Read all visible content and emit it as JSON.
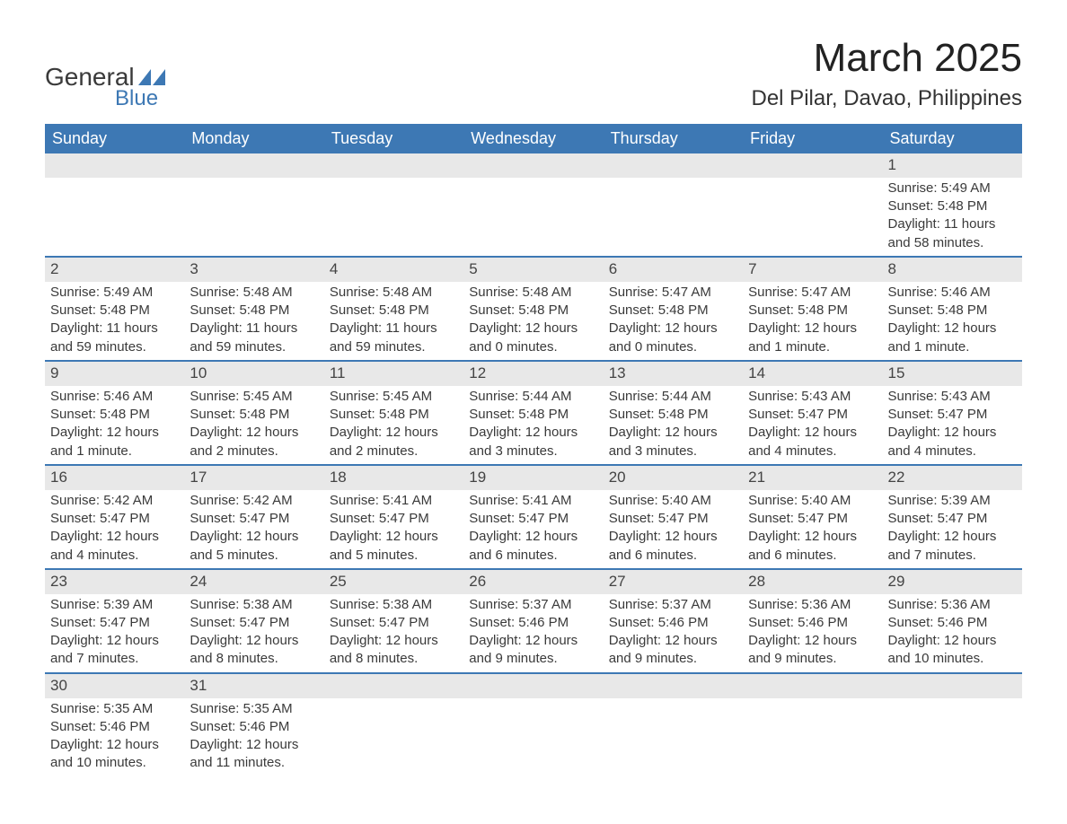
{
  "logo": {
    "text_general": "General",
    "text_blue": "Blue",
    "flag_color": "#3d78b4"
  },
  "title": "March 2025",
  "location": "Del Pilar, Davao, Philippines",
  "colors": {
    "header_bg": "#3d78b4",
    "header_text": "#ffffff",
    "daynum_bg": "#e8e8e8",
    "row_border": "#3d78b4",
    "body_text": "#3a3a3a",
    "background": "#ffffff"
  },
  "weekdays": [
    "Sunday",
    "Monday",
    "Tuesday",
    "Wednesday",
    "Thursday",
    "Friday",
    "Saturday"
  ],
  "weeks": [
    [
      null,
      null,
      null,
      null,
      null,
      null,
      {
        "n": "1",
        "sunrise": "Sunrise: 5:49 AM",
        "sunset": "Sunset: 5:48 PM",
        "daylight": "Daylight: 11 hours and 58 minutes."
      }
    ],
    [
      {
        "n": "2",
        "sunrise": "Sunrise: 5:49 AM",
        "sunset": "Sunset: 5:48 PM",
        "daylight": "Daylight: 11 hours and 59 minutes."
      },
      {
        "n": "3",
        "sunrise": "Sunrise: 5:48 AM",
        "sunset": "Sunset: 5:48 PM",
        "daylight": "Daylight: 11 hours and 59 minutes."
      },
      {
        "n": "4",
        "sunrise": "Sunrise: 5:48 AM",
        "sunset": "Sunset: 5:48 PM",
        "daylight": "Daylight: 11 hours and 59 minutes."
      },
      {
        "n": "5",
        "sunrise": "Sunrise: 5:48 AM",
        "sunset": "Sunset: 5:48 PM",
        "daylight": "Daylight: 12 hours and 0 minutes."
      },
      {
        "n": "6",
        "sunrise": "Sunrise: 5:47 AM",
        "sunset": "Sunset: 5:48 PM",
        "daylight": "Daylight: 12 hours and 0 minutes."
      },
      {
        "n": "7",
        "sunrise": "Sunrise: 5:47 AM",
        "sunset": "Sunset: 5:48 PM",
        "daylight": "Daylight: 12 hours and 1 minute."
      },
      {
        "n": "8",
        "sunrise": "Sunrise: 5:46 AM",
        "sunset": "Sunset: 5:48 PM",
        "daylight": "Daylight: 12 hours and 1 minute."
      }
    ],
    [
      {
        "n": "9",
        "sunrise": "Sunrise: 5:46 AM",
        "sunset": "Sunset: 5:48 PM",
        "daylight": "Daylight: 12 hours and 1 minute."
      },
      {
        "n": "10",
        "sunrise": "Sunrise: 5:45 AM",
        "sunset": "Sunset: 5:48 PM",
        "daylight": "Daylight: 12 hours and 2 minutes."
      },
      {
        "n": "11",
        "sunrise": "Sunrise: 5:45 AM",
        "sunset": "Sunset: 5:48 PM",
        "daylight": "Daylight: 12 hours and 2 minutes."
      },
      {
        "n": "12",
        "sunrise": "Sunrise: 5:44 AM",
        "sunset": "Sunset: 5:48 PM",
        "daylight": "Daylight: 12 hours and 3 minutes."
      },
      {
        "n": "13",
        "sunrise": "Sunrise: 5:44 AM",
        "sunset": "Sunset: 5:48 PM",
        "daylight": "Daylight: 12 hours and 3 minutes."
      },
      {
        "n": "14",
        "sunrise": "Sunrise: 5:43 AM",
        "sunset": "Sunset: 5:47 PM",
        "daylight": "Daylight: 12 hours and 4 minutes."
      },
      {
        "n": "15",
        "sunrise": "Sunrise: 5:43 AM",
        "sunset": "Sunset: 5:47 PM",
        "daylight": "Daylight: 12 hours and 4 minutes."
      }
    ],
    [
      {
        "n": "16",
        "sunrise": "Sunrise: 5:42 AM",
        "sunset": "Sunset: 5:47 PM",
        "daylight": "Daylight: 12 hours and 4 minutes."
      },
      {
        "n": "17",
        "sunrise": "Sunrise: 5:42 AM",
        "sunset": "Sunset: 5:47 PM",
        "daylight": "Daylight: 12 hours and 5 minutes."
      },
      {
        "n": "18",
        "sunrise": "Sunrise: 5:41 AM",
        "sunset": "Sunset: 5:47 PM",
        "daylight": "Daylight: 12 hours and 5 minutes."
      },
      {
        "n": "19",
        "sunrise": "Sunrise: 5:41 AM",
        "sunset": "Sunset: 5:47 PM",
        "daylight": "Daylight: 12 hours and 6 minutes."
      },
      {
        "n": "20",
        "sunrise": "Sunrise: 5:40 AM",
        "sunset": "Sunset: 5:47 PM",
        "daylight": "Daylight: 12 hours and 6 minutes."
      },
      {
        "n": "21",
        "sunrise": "Sunrise: 5:40 AM",
        "sunset": "Sunset: 5:47 PM",
        "daylight": "Daylight: 12 hours and 6 minutes."
      },
      {
        "n": "22",
        "sunrise": "Sunrise: 5:39 AM",
        "sunset": "Sunset: 5:47 PM",
        "daylight": "Daylight: 12 hours and 7 minutes."
      }
    ],
    [
      {
        "n": "23",
        "sunrise": "Sunrise: 5:39 AM",
        "sunset": "Sunset: 5:47 PM",
        "daylight": "Daylight: 12 hours and 7 minutes."
      },
      {
        "n": "24",
        "sunrise": "Sunrise: 5:38 AM",
        "sunset": "Sunset: 5:47 PM",
        "daylight": "Daylight: 12 hours and 8 minutes."
      },
      {
        "n": "25",
        "sunrise": "Sunrise: 5:38 AM",
        "sunset": "Sunset: 5:47 PM",
        "daylight": "Daylight: 12 hours and 8 minutes."
      },
      {
        "n": "26",
        "sunrise": "Sunrise: 5:37 AM",
        "sunset": "Sunset: 5:46 PM",
        "daylight": "Daylight: 12 hours and 9 minutes."
      },
      {
        "n": "27",
        "sunrise": "Sunrise: 5:37 AM",
        "sunset": "Sunset: 5:46 PM",
        "daylight": "Daylight: 12 hours and 9 minutes."
      },
      {
        "n": "28",
        "sunrise": "Sunrise: 5:36 AM",
        "sunset": "Sunset: 5:46 PM",
        "daylight": "Daylight: 12 hours and 9 minutes."
      },
      {
        "n": "29",
        "sunrise": "Sunrise: 5:36 AM",
        "sunset": "Sunset: 5:46 PM",
        "daylight": "Daylight: 12 hours and 10 minutes."
      }
    ],
    [
      {
        "n": "30",
        "sunrise": "Sunrise: 5:35 AM",
        "sunset": "Sunset: 5:46 PM",
        "daylight": "Daylight: 12 hours and 10 minutes."
      },
      {
        "n": "31",
        "sunrise": "Sunrise: 5:35 AM",
        "sunset": "Sunset: 5:46 PM",
        "daylight": "Daylight: 12 hours and 11 minutes."
      },
      null,
      null,
      null,
      null,
      null
    ]
  ]
}
